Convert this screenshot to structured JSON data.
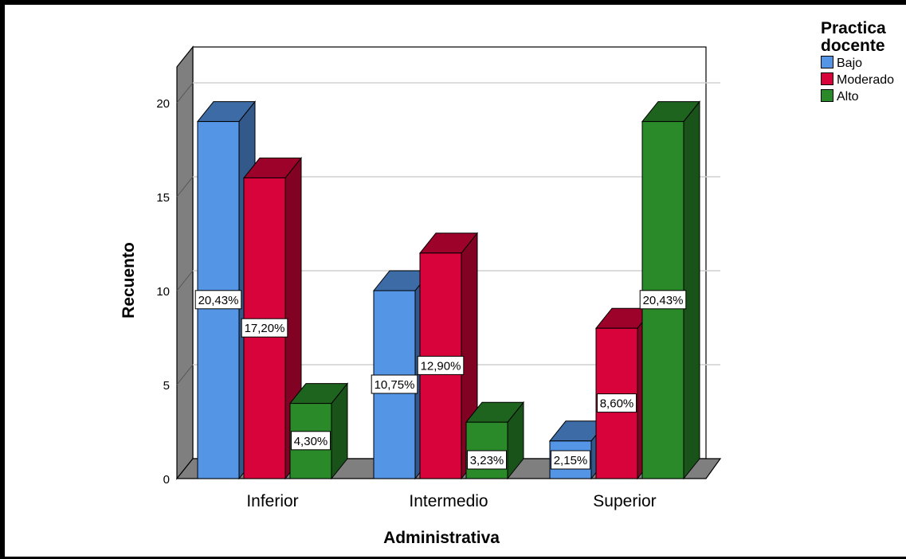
{
  "chart_data": {
    "type": "bar",
    "title": "",
    "xlabel": "Administrativa",
    "ylabel": "Recuento",
    "categories": [
      "Inferior",
      "Intermedio",
      "Superior"
    ],
    "yticks": [
      "0",
      "5",
      "10",
      "15",
      "20"
    ],
    "ylim": [
      0,
      20
    ],
    "grid": true,
    "legend_title": "Practica docente",
    "legend_placement": "top-right",
    "series": [
      {
        "name": "Bajo",
        "color": "#5595e6",
        "values": [
          19,
          10,
          2
        ],
        "labels": [
          "20,43%",
          "10,75%",
          "2,15%"
        ]
      },
      {
        "name": "Moderado",
        "color": "#d8033a",
        "values": [
          16,
          12,
          8
        ],
        "labels": [
          "17,20%",
          "12,90%",
          "8,60%"
        ]
      },
      {
        "name": "Alto",
        "color": "#2a8a2a",
        "values": [
          4,
          3,
          19
        ],
        "labels": [
          "4,30%",
          "3,23%",
          "20,43%"
        ]
      }
    ]
  }
}
